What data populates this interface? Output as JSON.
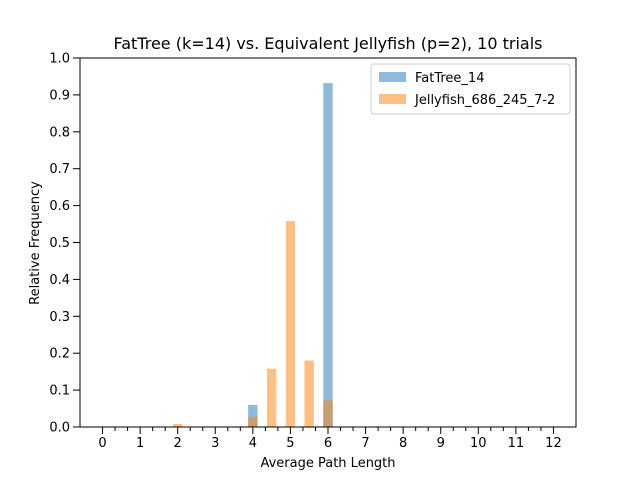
{
  "chart_data": {
    "type": "bar",
    "title": "FatTree (k=14) vs. Equivalent Jellyfish (p=2), 10 trials",
    "xlabel": "Average Path Length",
    "ylabel": "Relative Frequency",
    "xlim": [
      -0.6,
      12.6
    ],
    "ylim": [
      0,
      1.0
    ],
    "xticks": [
      0,
      1,
      2,
      3,
      4,
      5,
      6,
      7,
      8,
      9,
      10,
      11,
      12
    ],
    "yticks": [
      0.0,
      0.1,
      0.2,
      0.3,
      0.4,
      0.5,
      0.6,
      0.7,
      0.8,
      0.9,
      1.0
    ],
    "ytick_labels": [
      "0.0",
      "0.1",
      "0.2",
      "0.3",
      "0.4",
      "0.5",
      "0.6",
      "0.7",
      "0.8",
      "0.9",
      "1.0"
    ],
    "minor_xticks_per_unit": 3,
    "bar_width": 0.25,
    "grid": false,
    "legend_position": "top-right",
    "series": [
      {
        "name": "FatTree_14",
        "color": "#1f77b4",
        "opacity": 0.5,
        "x": [
          4,
          6
        ],
        "values": [
          0.06,
          0.932
        ]
      },
      {
        "name": "Jellyfish_686_245_7-2",
        "color": "#ff7f0e",
        "opacity": 0.5,
        "x": [
          2,
          3.667,
          4,
          4.5,
          5,
          5.5,
          6
        ],
        "values": [
          0.008,
          0.002,
          0.028,
          0.158,
          0.558,
          0.18,
          0.072
        ]
      }
    ]
  }
}
